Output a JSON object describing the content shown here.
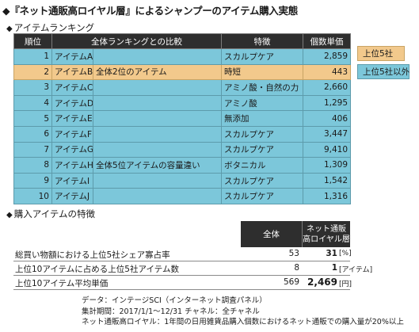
{
  "title": "◆『ネット通販高ロイヤル層』によるシャンプーのアイテム購入実態",
  "ranking": {
    "heading": "アイテムランキング",
    "headers": {
      "rank": "順位",
      "compare": "全体ランキングとの比較",
      "feature": "特徴",
      "units": "個数単価"
    },
    "rows": [
      {
        "rank": "1",
        "item": "アイテムA",
        "compare": "",
        "feature": "スカルプケア",
        "units": "2,859",
        "top5": false
      },
      {
        "rank": "2",
        "item": "アイテムB",
        "compare": "全体2位のアイテム",
        "feature": "時短",
        "units": "443",
        "top5": true
      },
      {
        "rank": "3",
        "item": "アイテムC",
        "compare": "",
        "feature": "アミノ酸・自然の力",
        "units": "2,660",
        "top5": false
      },
      {
        "rank": "4",
        "item": "アイテムD",
        "compare": "",
        "feature": "アミノ酸",
        "units": "1,295",
        "top5": false
      },
      {
        "rank": "5",
        "item": "アイテムE",
        "compare": "",
        "feature": "無添加",
        "units": "406",
        "top5": false
      },
      {
        "rank": "6",
        "item": "アイテムF",
        "compare": "",
        "feature": "スカルプケア",
        "units": "3,447",
        "top5": false
      },
      {
        "rank": "7",
        "item": "アイテムG",
        "compare": "",
        "feature": "スカルプケア",
        "units": "9,410",
        "top5": false
      },
      {
        "rank": "8",
        "item": "アイテムH",
        "compare": "全体5位アイテムの容量違い",
        "feature": "ボタニカル",
        "units": "1,309",
        "top5": false
      },
      {
        "rank": "9",
        "item": "アイテムI",
        "compare": "",
        "feature": "スカルプケア",
        "units": "1,542",
        "top5": false
      },
      {
        "rank": "10",
        "item": "アイテムJ",
        "compare": "",
        "feature": "スカルプケア",
        "units": "1,316",
        "top5": false
      }
    ],
    "legend": {
      "top5": "上位5社",
      "others": "上位5社以外",
      "top5_color": "#f2c98c",
      "others_color": "#7cc7da"
    }
  },
  "features": {
    "heading": "購入アイテムの特徴",
    "col_all": "全体",
    "col_loyal_1": "ネット通販",
    "col_loyal_2": "高ロイヤル層",
    "rows": [
      {
        "label": "総買い物額における上位5社シェア寡占率",
        "all": "53",
        "loyal": "31",
        "unit": "[%]"
      },
      {
        "label": "上位10アイテムに占める上位5社アイテム数",
        "all": "8",
        "loyal": "1",
        "unit": "[アイテム]"
      },
      {
        "label": "上位10アイテム平均単価",
        "all": "569",
        "loyal": "2,469",
        "unit": "[円]"
      }
    ]
  },
  "notes": [
    "データ：インテージSCI（インターネット調査パネル）",
    "集計期間：2017/1/1～12/31 チャネル：全チャネル",
    "ネット通販高ロイヤル：1年間の日用雑貨品購入個数におけるネット通販での購入量が20%以上"
  ]
}
